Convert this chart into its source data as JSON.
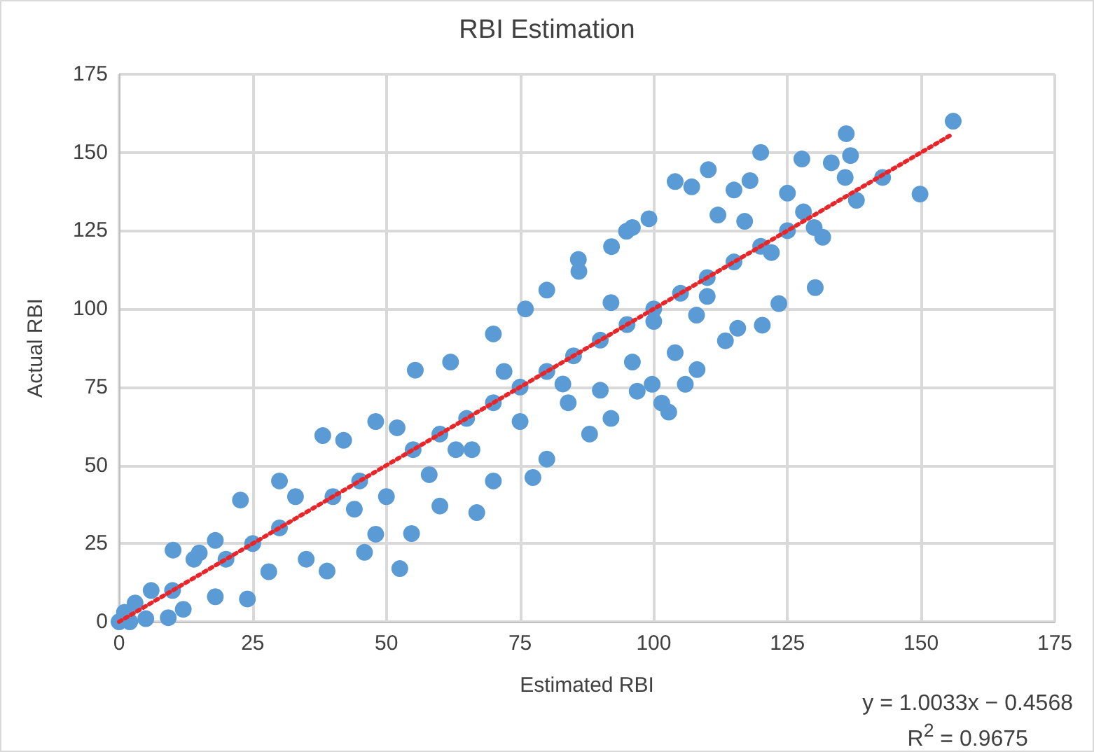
{
  "chart_data": {
    "type": "scatter",
    "title": "RBI Estimation",
    "xlabel": "Estimated RBI",
    "ylabel": "Actual RBI",
    "xlim": [
      0,
      175
    ],
    "xticks": [
      0,
      25,
      50,
      75,
      100,
      125,
      150,
      175
    ],
    "ylim": [
      0,
      175
    ],
    "yticks": [
      0,
      25,
      50,
      75,
      100,
      125,
      150,
      175
    ],
    "grid": true,
    "marker": "circle",
    "annotations": [
      "y = 1.0033x − 0.4568",
      "R$^{2}$ = 0.9675"
    ],
    "series": [
      {
        "color": "#5b9bd5",
        "x": [
          156,
          136,
          136.8,
          133.2,
          135.8,
          142.8,
          149.8,
          137.9,
          127.7,
          120,
          131.6,
          130.2,
          123.4,
          120.3,
          115.7,
          113.4,
          108.1,
          105.9,
          102.8,
          101.5,
          99.7,
          96.9,
          104,
          110.2,
          107.1,
          99.1,
          94.9,
          92.1,
          85.9,
          52.5,
          22.7,
          10.1,
          38.1,
          55.4,
          38.9,
          24,
          45.9,
          54.7,
          66.9,
          77.4,
          9.2,
          0,
          1,
          2,
          3,
          5,
          6,
          12,
          14,
          18,
          18,
          28,
          30,
          35,
          42,
          48,
          48,
          50,
          58,
          60,
          62,
          66,
          70,
          70,
          75,
          76,
          80,
          80,
          84,
          86,
          88,
          90,
          92,
          96,
          96,
          100,
          104,
          110,
          112,
          115,
          118,
          122,
          125,
          128,
          130,
          10,
          20,
          25,
          30,
          40,
          45,
          55,
          60,
          65,
          70,
          75,
          80,
          85,
          90,
          95,
          100,
          105,
          110,
          115,
          120,
          125,
          15,
          33,
          44,
          52,
          63,
          72,
          83,
          92,
          108,
          117
        ],
        "values": [
          160,
          156,
          149,
          146.7,
          142,
          142,
          136.7,
          134.7,
          147.9,
          150,
          122.9,
          106.8,
          101.7,
          94.8,
          93.8,
          89.8,
          80.6,
          75.9,
          67,
          69.9,
          75.9,
          73.7,
          140.7,
          144.5,
          139,
          128.8,
          124.8,
          119.9,
          115.8,
          17,
          38.9,
          22.9,
          59.5,
          80.4,
          16.2,
          7.3,
          22.2,
          28.2,
          34.9,
          46.1,
          1.3,
          0,
          3,
          0,
          6,
          1,
          10,
          4,
          20,
          8,
          26,
          16,
          45,
          20,
          58,
          28,
          64,
          40,
          47,
          37,
          83,
          55,
          92,
          45,
          64,
          100,
          106,
          52,
          70,
          112,
          60,
          74,
          65,
          126,
          83,
          96,
          86,
          104,
          130,
          138,
          141,
          118,
          137,
          131,
          126,
          10,
          20,
          25,
          30,
          40,
          45,
          55,
          60,
          65,
          70,
          75,
          80,
          85,
          90,
          95,
          100,
          105,
          110,
          115,
          120,
          125,
          22,
          40,
          36,
          62,
          55,
          80,
          76,
          102,
          98,
          128
        ]
      },
      {
        "type": "line",
        "color": "#e8262a",
        "line_style": "dotted",
        "marker": "none",
        "x": [
          0,
          156
        ],
        "values": [
          0,
          156
        ]
      }
    ]
  }
}
